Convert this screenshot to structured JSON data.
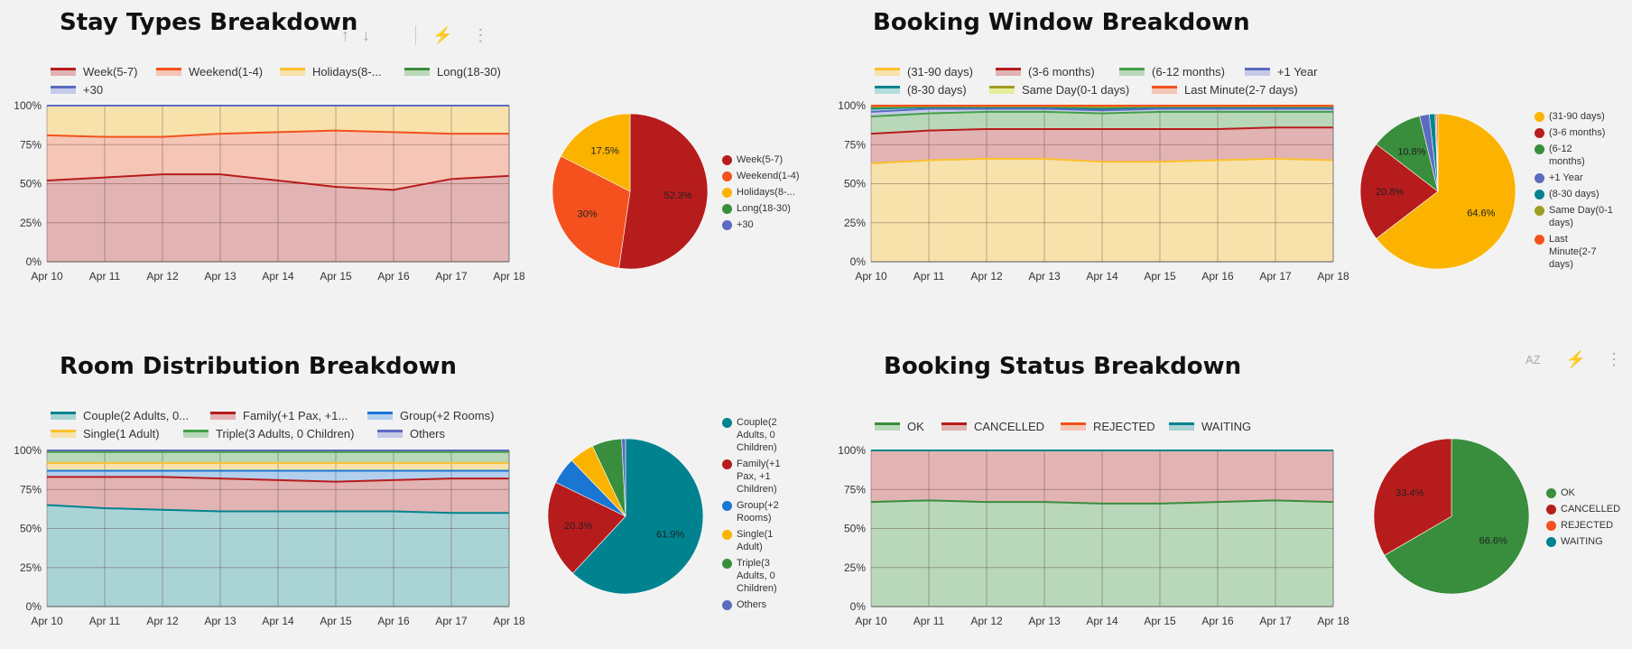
{
  "toolbar1": {
    "up_icon": "↑",
    "down_icon": "↓",
    "cross_icon": "⚡",
    "more_icon": "⋮"
  },
  "toolbar2": {
    "sort_icon": "AZ",
    "cross_icon": "⚡",
    "more_icon": "⋮"
  },
  "chart_data": [
    {
      "id": "stay",
      "type": "area",
      "title": "Stay Types Breakdown",
      "categories": [
        "Apr 10",
        "Apr 11",
        "Apr 12",
        "Apr 13",
        "Apr 14",
        "Apr 15",
        "Apr 16",
        "Apr 17",
        "Apr 18"
      ],
      "yticks": [
        "0%",
        "25%",
        "50%",
        "75%",
        "100%"
      ],
      "ylim": [
        0,
        100
      ],
      "stacked": true,
      "series": [
        {
          "name": "Week(5-7)",
          "color": "#b71c1c",
          "fill": "#e2b3b3",
          "values": [
            52,
            54,
            56,
            56,
            52,
            48,
            46,
            53,
            55
          ]
        },
        {
          "name": "Weekend(1-4)",
          "color": "#f4511e",
          "fill": "#f5c6b6",
          "values": [
            29,
            26,
            24,
            26,
            31,
            36,
            37,
            29,
            27
          ]
        },
        {
          "name": "Holidays(8-...",
          "color": "#fbc02d",
          "fill": "#f8e2ac",
          "values": [
            19,
            20,
            20,
            18,
            17,
            16,
            17,
            18,
            18
          ]
        },
        {
          "name": "Long(18-30)",
          "color": "#388e3c",
          "fill": "#b9d8b9",
          "values": [
            0,
            0,
            0,
            0,
            0,
            0,
            0,
            0,
            0
          ]
        },
        {
          "name": "+30",
          "color": "#5c6bc0",
          "fill": "#c5cae9",
          "values": [
            0,
            0,
            0,
            0,
            0,
            0,
            0,
            0,
            0
          ]
        }
      ],
      "pie": {
        "slices": [
          {
            "name": "Week(5-7)",
            "value": 52.3,
            "label": "52.3%",
            "color": "#b71c1c"
          },
          {
            "name": "Weekend(1-4)",
            "value": 30.2,
            "label": "30%",
            "color": "#f4511e"
          },
          {
            "name": "Holidays(8-...",
            "value": 17.5,
            "label": "17.5%",
            "color": "#fbb300"
          },
          {
            "name": "Long(18-30)",
            "value": 0,
            "label": "",
            "color": "#388e3c"
          },
          {
            "name": "+30",
            "value": 0,
            "label": "",
            "color": "#5c6bc0"
          }
        ]
      }
    },
    {
      "id": "window",
      "type": "area",
      "title": "Booking Window Breakdown",
      "categories": [
        "Apr 10",
        "Apr 11",
        "Apr 12",
        "Apr 13",
        "Apr 14",
        "Apr 15",
        "Apr 16",
        "Apr 17",
        "Apr 18"
      ],
      "yticks": [
        "0%",
        "25%",
        "50%",
        "75%",
        "100%"
      ],
      "ylim": [
        0,
        100
      ],
      "stacked": true,
      "series": [
        {
          "name": "(31-90 days)",
          "color": "#fbc02d",
          "fill": "#f8e2ac",
          "values": [
            63,
            65,
            66,
            66,
            64,
            64,
            65,
            66,
            65
          ]
        },
        {
          "name": "(3-6 months)",
          "color": "#b71c1c",
          "fill": "#e2b3b3",
          "values": [
            19,
            19,
            19,
            19,
            21,
            21,
            20,
            20,
            21
          ]
        },
        {
          "name": "(6-12 months)",
          "color": "#43a047",
          "fill": "#b9d8b9",
          "values": [
            11,
            11,
            11,
            11,
            10,
            11,
            11,
            10,
            10
          ]
        },
        {
          "name": "+1 Year",
          "color": "#5c6bc0",
          "fill": "#c5cae9",
          "values": [
            3,
            3,
            2,
            2,
            2,
            2,
            2,
            2,
            2
          ]
        },
        {
          "name": "(8-30 days)",
          "color": "#00838f",
          "fill": "#b2dfdb",
          "values": [
            2,
            1,
            1,
            1,
            1,
            1,
            1,
            1,
            1
          ]
        },
        {
          "name": "Same Day(0-1 days)",
          "color": "#9e9d24",
          "fill": "#e6ee9c",
          "values": [
            1,
            0.5,
            0.5,
            0.5,
            1,
            0.5,
            0.5,
            0.5,
            0.5
          ]
        },
        {
          "name": "Last Minute(2-7 days)",
          "color": "#f4511e",
          "fill": "#f5c6b6",
          "values": [
            1,
            0.5,
            0.5,
            0.5,
            1,
            0.5,
            0.5,
            0.5,
            0.5
          ]
        }
      ],
      "pie": {
        "slices": [
          {
            "name": "(31-90 days)",
            "value": 64.6,
            "label": "64.6%",
            "color": "#fbb300"
          },
          {
            "name": "(3-6 months)",
            "value": 20.8,
            "label": "20.8%",
            "color": "#b71c1c"
          },
          {
            "name": "(6-12 months)",
            "value": 10.8,
            "label": "10.8%",
            "color": "#388e3c"
          },
          {
            "name": "+1 Year",
            "value": 2.0,
            "label": "",
            "color": "#5c6bc0"
          },
          {
            "name": "(8-30 days)",
            "value": 1.2,
            "label": "",
            "color": "#00838f"
          },
          {
            "name": "Same Day(0-1 days)",
            "value": 0.3,
            "label": "",
            "color": "#9e9d24"
          },
          {
            "name": "Last Minute(2-7 days)",
            "value": 0.3,
            "label": "",
            "color": "#f4511e"
          }
        ],
        "legend_labels": [
          "(31-90 days)",
          "(3-6 months)",
          "(6-12\nmonths)",
          "+1 Year",
          "(8-30 days)",
          "Same Day(0-1\ndays)",
          "Last\nMinute(2-7\ndays)"
        ]
      }
    },
    {
      "id": "room",
      "type": "area",
      "title": "Room Distribution Breakdown",
      "categories": [
        "Apr 10",
        "Apr 11",
        "Apr 12",
        "Apr 13",
        "Apr 14",
        "Apr 15",
        "Apr 16",
        "Apr 17",
        "Apr 18"
      ],
      "yticks": [
        "0%",
        "25%",
        "50%",
        "75%",
        "100%"
      ],
      "ylim": [
        0,
        100
      ],
      "stacked": true,
      "series": [
        {
          "name": "Couple(2 Adults, 0...",
          "color": "#00838f",
          "fill": "#aad3d6",
          "values": [
            65,
            63,
            62,
            61,
            61,
            61,
            61,
            60,
            60
          ]
        },
        {
          "name": "Family(+1 Pax, +1...",
          "color": "#b71c1c",
          "fill": "#e2b3b3",
          "values": [
            18,
            20,
            21,
            21,
            20,
            19,
            20,
            22,
            22
          ]
        },
        {
          "name": "Group(+2 Rooms)",
          "color": "#1976d2",
          "fill": "#b3cfee",
          "values": [
            4,
            4,
            4,
            5,
            6,
            7,
            6,
            5,
            5
          ]
        },
        {
          "name": "Single(1 Adult)",
          "color": "#fbc02d",
          "fill": "#f8e2ac",
          "values": [
            5,
            5,
            5,
            5,
            5,
            5,
            5,
            5,
            5
          ]
        },
        {
          "name": "Triple(3 Adults, 0 Children)",
          "color": "#43a047",
          "fill": "#b9d8b9",
          "values": [
            7,
            7,
            7,
            7,
            7,
            7,
            7,
            7,
            7
          ]
        },
        {
          "name": "Others",
          "color": "#5c6bc0",
          "fill": "#c5cae9",
          "values": [
            1,
            1,
            1,
            1,
            1,
            1,
            1,
            1,
            1
          ]
        }
      ],
      "pie": {
        "slices": [
          {
            "name": "Couple(2 Adults, 0 Children)",
            "value": 61.9,
            "label": "61.9%",
            "color": "#00838f"
          },
          {
            "name": "Family(+1 Pax, +1 Children)",
            "value": 20.3,
            "label": "20.3%",
            "color": "#b71c1c"
          },
          {
            "name": "Group(+2 Rooms)",
            "value": 5.6,
            "label": "",
            "color": "#1976d2"
          },
          {
            "name": "Single(1 Adult)",
            "value": 5.2,
            "label": "",
            "color": "#fbb300"
          },
          {
            "name": "Triple(3 Adults, 0 Children)",
            "value": 6.2,
            "label": "",
            "color": "#388e3c"
          },
          {
            "name": "Others",
            "value": 0.8,
            "label": "",
            "color": "#5c6bc0"
          }
        ],
        "legend_labels": [
          "Couple(2\nAdults, 0\nChildren)",
          "Family(+1\nPax, +1\nChildren)",
          "Group(+2\nRooms)",
          "Single(1\nAdult)",
          "Triple(3\nAdults, 0\nChildren)",
          "Others"
        ]
      }
    },
    {
      "id": "status",
      "type": "area",
      "title": "Booking Status Breakdown",
      "categories": [
        "Apr 10",
        "Apr 11",
        "Apr 12",
        "Apr 13",
        "Apr 14",
        "Apr 15",
        "Apr 16",
        "Apr 17",
        "Apr 18"
      ],
      "yticks": [
        "0%",
        "25%",
        "50%",
        "75%",
        "100%"
      ],
      "ylim": [
        0,
        100
      ],
      "stacked": true,
      "series": [
        {
          "name": "OK",
          "color": "#388e3c",
          "fill": "#b9d8b9",
          "values": [
            67,
            68,
            67,
            67,
            66,
            66,
            67,
            68,
            67
          ]
        },
        {
          "name": "CANCELLED",
          "color": "#b71c1c",
          "fill": "#e2b3b3",
          "values": [
            33,
            32,
            33,
            33,
            34,
            34,
            33,
            32,
            33
          ]
        },
        {
          "name": "REJECTED",
          "color": "#f4511e",
          "fill": "#f5c6b6",
          "values": [
            0,
            0,
            0,
            0,
            0,
            0,
            0,
            0,
            0
          ]
        },
        {
          "name": "WAITING",
          "color": "#00838f",
          "fill": "#aad3d6",
          "values": [
            0,
            0,
            0,
            0,
            0,
            0,
            0,
            0,
            0
          ]
        }
      ],
      "pie": {
        "slices": [
          {
            "name": "OK",
            "value": 66.6,
            "label": "66.6%",
            "color": "#388e3c"
          },
          {
            "name": "CANCELLED",
            "value": 33.4,
            "label": "33.4%",
            "color": "#b71c1c"
          },
          {
            "name": "REJECTED",
            "value": 0,
            "label": "",
            "color": "#f4511e"
          },
          {
            "name": "WAITING",
            "value": 0,
            "label": "",
            "color": "#00838f"
          }
        ]
      }
    }
  ]
}
